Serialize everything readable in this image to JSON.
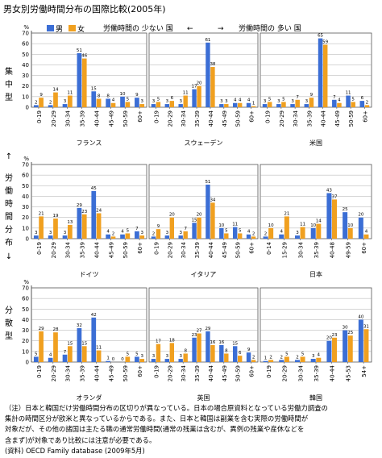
{
  "title": "男女別労働時間分布の国際比較(2005年)",
  "legend": {
    "male": "男",
    "female": "女"
  },
  "arrow_text": {
    "left": "労働時間の 少ない 国",
    "left_arrow": "←",
    "right_arrow": "→",
    "right": "労働時間の 多い 国"
  },
  "side_labels": {
    "top": "集中型",
    "middle": "労働時間分布",
    "bottom": "分散型",
    "arrow_up": "↑",
    "arrow_down": "↓"
  },
  "colors": {
    "male": "#3b6ed5",
    "female": "#f0a020",
    "grid": "#999999",
    "border": "#555555"
  },
  "note": "（注）日本と韓国だけ労働時間分布の区切りが異なっている。日本の場合原資料となっている労働力調査の\n集計の時間区分が欧米と異なっているからである。また、日本と韓国は副業を含む実際の労働時間が\n対象だが、その他の諸国は主たる職の通常労働時間(通常の残業は含むが、異例の残業や産休などを\n含まず)が対象であり比較には注意が必要である。",
  "source": "(資料) OECD Family database (2009年5月)",
  "chart_data": [
    {
      "type": "bar",
      "country": "フランス",
      "row": 0,
      "y_unit": "%",
      "ylim": [
        0,
        70
      ],
      "yticks": [
        0,
        10,
        20,
        30,
        40,
        50,
        60,
        70
      ],
      "categories": [
        "0-19",
        "20-29",
        "30-34",
        "35-39",
        "40-44",
        "45-49",
        "50-59",
        "60+"
      ],
      "series": [
        {
          "name": "男",
          "values": [
            2,
            2,
            3,
            51,
            15,
            8,
            10,
            9
          ]
        },
        {
          "name": "女",
          "values": [
            9,
            14,
            11,
            46,
            8,
            4,
            5,
            3
          ]
        }
      ]
    },
    {
      "type": "bar",
      "country": "スウェーデン",
      "row": 0,
      "y_unit": "%",
      "ylim": [
        0,
        70
      ],
      "yticks": [
        0,
        10,
        20,
        30,
        40,
        50,
        60,
        70
      ],
      "categories": [
        "0-19",
        "20-29",
        "30-34",
        "35-39",
        "40-44",
        "45-49",
        "50-59",
        "60+"
      ],
      "series": [
        {
          "name": "男",
          "values": [
            3,
            3,
            3,
            17,
            61,
            3,
            4,
            4
          ]
        },
        {
          "name": "女",
          "values": [
            5,
            6,
            11,
            20,
            38,
            3,
            4,
            1
          ]
        }
      ]
    },
    {
      "type": "bar",
      "country": "米国",
      "row": 0,
      "y_unit": "%",
      "ylim": [
        0,
        70
      ],
      "yticks": [
        0,
        10,
        20,
        30,
        40,
        50,
        60,
        70
      ],
      "categories": [
        "0-19",
        "20-29",
        "30-34",
        "35-39",
        "40-44",
        "45-49",
        "50-59",
        "60+"
      ],
      "series": [
        {
          "name": "男",
          "values": [
            3,
            3,
            3,
            3,
            65,
            7,
            11,
            6
          ]
        },
        {
          "name": "女",
          "values": [
            5,
            5,
            7,
            9,
            59,
            4,
            5,
            2
          ]
        }
      ]
    },
    {
      "type": "bar",
      "country": "ドイツ",
      "row": 1,
      "y_unit": "%",
      "ylim": [
        0,
        70
      ],
      "yticks": [
        0,
        10,
        20,
        30,
        40,
        50,
        60,
        70
      ],
      "categories": [
        "0-19",
        "20-29",
        "30-34",
        "35-39",
        "40-44",
        "45-49",
        "50-59",
        "60+"
      ],
      "series": [
        {
          "name": "男",
          "values": [
            3,
            3,
            3,
            29,
            45,
            4,
            4,
            7
          ]
        },
        {
          "name": "女",
          "values": [
            21,
            19,
            13,
            23,
            24,
            2,
            5,
            3
          ]
        }
      ]
    },
    {
      "type": "bar",
      "country": "イタリア",
      "row": 1,
      "y_unit": "%",
      "ylim": [
        0,
        70
      ],
      "yticks": [
        0,
        10,
        20,
        30,
        40,
        50,
        60,
        70
      ],
      "categories": [
        "0-19",
        "20-29",
        "30-34",
        "35-39",
        "40-44",
        "45-49",
        "50-59",
        "60+"
      ],
      "series": [
        {
          "name": "男",
          "values": [
            2,
            3,
            3,
            15,
            51,
            10,
            11,
            4
          ]
        },
        {
          "name": "女",
          "values": [
            9,
            20,
            7,
            20,
            34,
            5,
            5,
            2
          ]
        }
      ]
    },
    {
      "type": "bar",
      "country": "日本",
      "row": 1,
      "y_unit": "%",
      "ylim": [
        0,
        70
      ],
      "yticks": [
        0,
        10,
        20,
        30,
        40,
        50,
        60,
        70
      ],
      "categories": [
        "0-14",
        "15-29",
        "30-34",
        "35-39",
        "40-48",
        "49-59",
        "60+"
      ],
      "series": [
        {
          "name": "男",
          "values": [
            2,
            4,
            3,
            10,
            43,
            25,
            20
          ]
        },
        {
          "name": "女",
          "values": [
            10,
            21,
            11,
            14,
            37,
            10,
            4
          ]
        }
      ]
    },
    {
      "type": "bar",
      "country": "オランダ",
      "row": 2,
      "y_unit": "%",
      "ylim": [
        0,
        70
      ],
      "yticks": [
        0,
        10,
        20,
        30,
        40,
        50,
        60,
        70
      ],
      "categories": [
        "0-19",
        "20-29",
        "30-34",
        "35-39",
        "40-44",
        "45-49",
        "50-59",
        "60+"
      ],
      "series": [
        {
          "name": "男",
          "values": [
            5,
            4,
            7,
            32,
            42,
            1,
            0,
            5
          ]
        },
        {
          "name": "女",
          "values": [
            29,
            28,
            15,
            15,
            11,
            0,
            5,
            3
          ]
        }
      ]
    },
    {
      "type": "bar",
      "country": "英国",
      "row": 2,
      "y_unit": "%",
      "ylim": [
        0,
        70
      ],
      "yticks": [
        0,
        10,
        20,
        30,
        40,
        50,
        60,
        70
      ],
      "categories": [
        "0-19",
        "20-29",
        "30-34",
        "35-39",
        "40-44",
        "45-49",
        "50-59",
        "60+"
      ],
      "series": [
        {
          "name": "男",
          "values": [
            3,
            3,
            3,
            23,
            29,
            16,
            15,
            9
          ]
        },
        {
          "name": "女",
          "values": [
            17,
            18,
            8,
            27,
            16,
            8,
            6,
            2
          ]
        }
      ]
    },
    {
      "type": "bar",
      "country": "韓国",
      "row": 2,
      "y_unit": "%",
      "ylim": [
        0,
        70
      ],
      "yticks": [
        0,
        10,
        20,
        30,
        40,
        50,
        60,
        70
      ],
      "categories": [
        "0-19",
        "20-29",
        "30-34",
        "35-39",
        "40-44",
        "45-53",
        "54+"
      ],
      "series": [
        {
          "name": "男",
          "values": [
            1,
            2,
            2,
            3,
            20,
            30,
            40
          ]
        },
        {
          "name": "女",
          "values": [
            2,
            5,
            5,
            4,
            23,
            25,
            31
          ]
        }
      ]
    }
  ]
}
